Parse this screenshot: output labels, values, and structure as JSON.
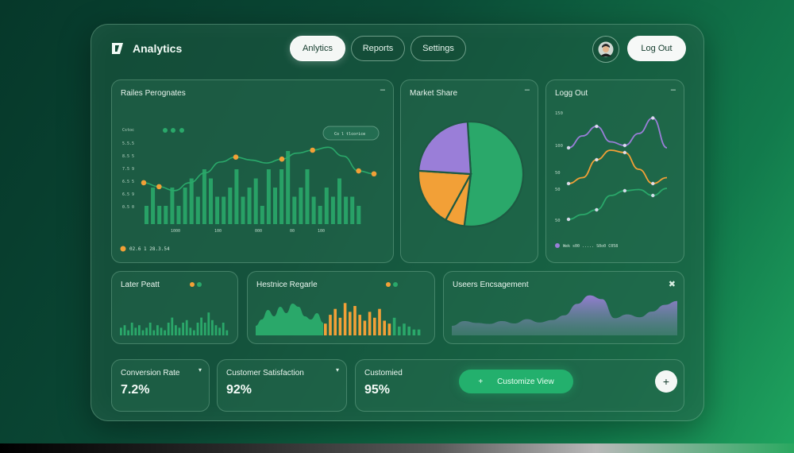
{
  "header": {
    "logo_text": "Analytics",
    "nav": [
      {
        "label": "Anlytics",
        "active": true
      },
      {
        "label": "Reports",
        "active": false
      },
      {
        "label": "Settings",
        "active": false
      }
    ],
    "logout_label": "Log Out"
  },
  "panels": {
    "sales": {
      "title": "Railes Perognates",
      "min_icon": "minus-icon",
      "legend_label": "Cstoc",
      "button_label": "Co l tlcorice",
      "footer_label": "02.6 1 28.3.54",
      "y_ticks": [
        "5.5.5",
        "8.5 5",
        "7.5 9",
        "6.5 5",
        "6.5 9",
        "0.5 0"
      ],
      "x_ticks": [
        "1000",
        "100",
        "000",
        "00",
        "100"
      ]
    },
    "market": {
      "title": "Market Share",
      "min_icon": "minus-icon"
    },
    "logg": {
      "title": "Logg Out",
      "min_icon": "minus-icon",
      "y_ticks": [
        "150",
        "100",
        "50",
        "50",
        "50"
      ],
      "legend_label": "Wek s00 ..... S0o0 C058"
    },
    "later": {
      "title": "Later Peatt"
    },
    "hestnice": {
      "title": "Hestnice Regarle"
    },
    "engagement": {
      "title": "Useers Encsagement",
      "icon": "collapse-icon"
    }
  },
  "kpis": [
    {
      "label": "Conversion Rate",
      "value": "7.2%"
    },
    {
      "label": "Customer Satisfaction",
      "value": "92%"
    },
    {
      "label": "Customied",
      "value": "95%"
    }
  ],
  "customize": {
    "button_label": "Customize View",
    "plus_symbol": "+",
    "arrow_symbol": "+"
  },
  "colors": {
    "green": "#2aa86a",
    "orange": "#f2a037",
    "purple": "#9a7ed8",
    "bg": "#0b4a36"
  },
  "chart_data": [
    {
      "type": "bar",
      "title": "Railes Perognates",
      "series": [
        {
          "values": [
            2,
            4,
            2,
            2,
            4,
            2,
            4,
            5,
            3,
            6,
            5,
            3,
            3,
            4,
            6,
            3,
            4,
            5,
            2,
            6,
            4,
            6,
            8,
            3,
            4,
            6,
            3,
            2,
            4,
            3,
            5,
            3,
            3,
            2
          ]
        }
      ]
    },
    {
      "type": "line",
      "title": "Railes Perognates",
      "series": [
        {
          "values": [
            4.2,
            3.8,
            3.4,
            4.2,
            5.2,
            6.3,
            6.8,
            6.5,
            6.2,
            6.6,
            7.2,
            7.5,
            7.8,
            6.9,
            5.4,
            5.1
          ]
        }
      ]
    },
    {
      "type": "pie",
      "title": "Market Share",
      "values": [
        53,
        6,
        18,
        23
      ]
    },
    {
      "type": "line",
      "title": "Logg Out",
      "series": [
        {
          "values": [
            70,
            80,
            88,
            75,
            72,
            82,
            95,
            70
          ]
        },
        {
          "values": [
            40,
            45,
            60,
            68,
            66,
            52,
            40,
            45
          ]
        },
        {
          "values": [
            10,
            14,
            18,
            30,
            34,
            35,
            30,
            36
          ]
        }
      ]
    },
    {
      "type": "bar",
      "title": "Later Peatt",
      "series": [
        {
          "values": [
            3,
            4,
            2,
            5,
            3,
            4,
            2,
            3,
            5,
            2,
            4,
            3,
            2,
            5,
            7,
            4,
            3,
            5,
            6,
            3,
            2,
            5,
            7,
            5,
            9,
            6,
            4,
            3,
            5,
            2
          ]
        }
      ]
    },
    {
      "type": "area",
      "title": "Hestnice Regarle",
      "series": [
        {
          "values": [
            3,
            5,
            8,
            6,
            9,
            7,
            10,
            9,
            6,
            5,
            7,
            4
          ]
        }
      ]
    },
    {
      "type": "bar",
      "title": "Hestnice Regarle",
      "series": [
        {
          "values": [
            4,
            7,
            9,
            6,
            11,
            8,
            10,
            7,
            5,
            8,
            6,
            9,
            5,
            4,
            6,
            3,
            4,
            3,
            2,
            2
          ]
        }
      ]
    },
    {
      "type": "area",
      "title": "Useers Encsagement",
      "series": [
        {
          "values": [
            2,
            3,
            2.6,
            2.4,
            3,
            2.5,
            3.4,
            2.7,
            3.2,
            4.2,
            6.6,
            8.4,
            7.6,
            3.6,
            4.4,
            3.8,
            5,
            6.4,
            7.2
          ]
        }
      ]
    }
  ]
}
